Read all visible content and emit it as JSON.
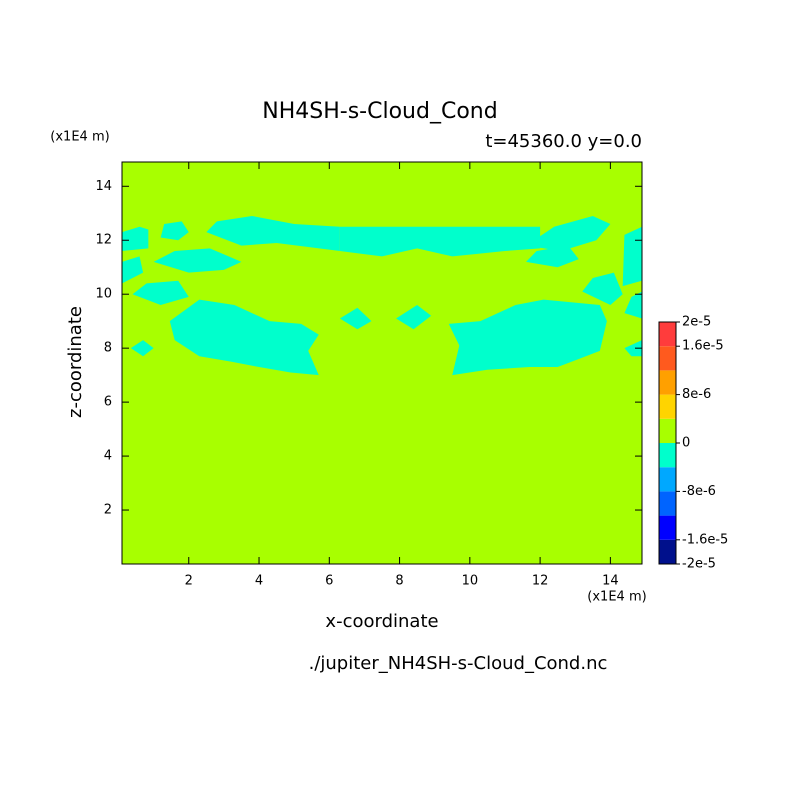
{
  "chart_data": {
    "type": "contour",
    "title": "NH4SH-s-Cloud_Cond",
    "subtitle": "t=45360.0 y=0.0",
    "x_label": "x-coordinate",
    "y_label": "z-coordinate",
    "x_unit": "(x1E4 m)",
    "y_unit": "(x1E4 m)",
    "source": "./jupiter_NH4SH-s-Cloud_Cond.nc",
    "xlim": [
      0.1,
      14.9
    ],
    "ylim": [
      0,
      14.9
    ],
    "xticks": [
      2,
      4,
      6,
      8,
      10,
      12,
      14
    ],
    "yticks": [
      2,
      4,
      6,
      8,
      10,
      12,
      14
    ],
    "levels": [
      -2e-05,
      -1.6e-05,
      -1.2e-05,
      -8e-06,
      -4e-06,
      0,
      4e-06,
      8e-06,
      1.2e-05,
      1.6e-05,
      2e-05
    ],
    "colors": [
      "#00108c",
      "#0000ff",
      "#0064ff",
      "#00a8ff",
      "#00ffcc",
      "#a8ff00",
      "#ffd400",
      "#ffa000",
      "#ff5a1e",
      "#ff3c3c"
    ],
    "cbar_ticks": [
      {
        "value": 2e-05,
        "label": "2e-5"
      },
      {
        "value": 1.6e-05,
        "label": "1.6e-5"
      },
      {
        "value": 8e-06,
        "label": "8e-6"
      },
      0,
      {
        "value": -8e-06,
        "label": "-8e-6"
      },
      {
        "value": -1.6e-05,
        "label": "-1.6e-5"
      },
      {
        "value": -2e-05,
        "label": "-2e-5"
      }
    ],
    "fill_value": 0,
    "regions": [
      {
        "value": -2e-06,
        "x": [
          0.1,
          0.85,
          0.85,
          0.6,
          0.1
        ],
        "y": [
          11.6,
          11.7,
          12.4,
          12.5,
          12.3
        ]
      },
      {
        "value": -2e-06,
        "x": [
          1.2,
          1.7,
          2.0,
          1.8,
          1.3
        ],
        "y": [
          12.1,
          12.0,
          12.3,
          12.7,
          12.6
        ]
      },
      {
        "value": -2e-06,
        "x": [
          1.0,
          2.0,
          3.0,
          3.5,
          2.6,
          1.6
        ],
        "y": [
          11.2,
          10.8,
          10.9,
          11.2,
          11.7,
          11.6
        ]
      },
      {
        "value": -2e-06,
        "x": [
          0.1,
          0.7,
          0.6,
          0.1
        ],
        "y": [
          10.4,
          10.8,
          11.4,
          11.2
        ]
      },
      {
        "value": -2e-06,
        "x": [
          0.4,
          1.2,
          2.0,
          1.7,
          0.8
        ],
        "y": [
          10.0,
          9.6,
          9.9,
          10.5,
          10.4
        ]
      },
      {
        "value": -2e-06,
        "x": [
          2.5,
          3.5,
          4.5,
          6.3,
          6.3,
          5.0,
          3.8,
          2.8
        ],
        "y": [
          12.3,
          11.8,
          11.9,
          11.6,
          12.5,
          12.6,
          12.9,
          12.7
        ]
      },
      {
        "value": -2e-06,
        "x": [
          6.3,
          7.5,
          8.5,
          9.5,
          11.0,
          12.0,
          12.0,
          6.3
        ],
        "y": [
          11.6,
          11.4,
          11.7,
          11.4,
          11.6,
          11.7,
          12.5,
          12.5
        ]
      },
      {
        "value": -2e-06,
        "x": [
          11.6,
          12.6,
          13.6,
          14.0,
          13.5,
          12.4
        ],
        "y": [
          11.8,
          11.6,
          12.0,
          12.6,
          12.9,
          12.5
        ]
      },
      {
        "value": -2e-06,
        "x": [
          11.6,
          12.5,
          13.1,
          12.8,
          11.9
        ],
        "y": [
          11.2,
          11.0,
          11.3,
          11.8,
          11.6
        ]
      },
      {
        "value": -2e-06,
        "x": [
          13.2,
          14.0,
          14.35,
          14.1,
          13.5
        ],
        "y": [
          10.1,
          9.6,
          10.0,
          10.8,
          10.6
        ]
      },
      {
        "value": -2e-06,
        "x": [
          14.35,
          14.9,
          14.9,
          14.4
        ],
        "y": [
          10.3,
          10.5,
          12.5,
          12.2
        ]
      },
      {
        "value": -2e-06,
        "x": [
          14.4,
          14.9,
          14.9,
          14.6
        ],
        "y": [
          9.3,
          9.1,
          10.1,
          9.9
        ]
      },
      {
        "value": -2e-06,
        "x": [
          1.46,
          2.3,
          3.3,
          4.3,
          5.2,
          5.7,
          5.4,
          5.7,
          4.9,
          4.0,
          3.2,
          2.3,
          1.6
        ],
        "y": [
          9.0,
          9.8,
          9.6,
          9.0,
          8.9,
          8.5,
          7.9,
          7.0,
          7.1,
          7.3,
          7.5,
          7.7,
          8.3
        ]
      },
      {
        "value": -2e-06,
        "x": [
          0.35,
          0.7,
          1.0,
          0.7
        ],
        "y": [
          8.0,
          8.3,
          8.0,
          7.7
        ]
      },
      {
        "value": -2e-06,
        "x": [
          6.3,
          6.8,
          7.2,
          6.8
        ],
        "y": [
          9.1,
          9.5,
          9.0,
          8.7
        ]
      },
      {
        "value": -2e-06,
        "x": [
          7.9,
          8.5,
          8.9,
          8.4
        ],
        "y": [
          9.1,
          9.6,
          9.2,
          8.7
        ]
      },
      {
        "value": -2e-06,
        "x": [
          9.4,
          10.3,
          11.3,
          12.1,
          13.7,
          13.9,
          13.7,
          13.1,
          12.5,
          11.7,
          10.5,
          9.5,
          9.7
        ],
        "y": [
          8.9,
          9.0,
          9.6,
          9.8,
          9.6,
          9.0,
          7.9,
          7.6,
          7.3,
          7.3,
          7.2,
          7.0,
          8.1
        ]
      },
      {
        "value": -2e-06,
        "x": [
          14.4,
          14.9,
          14.9,
          14.6
        ],
        "y": [
          8.0,
          8.3,
          7.7,
          7.7
        ]
      }
    ]
  }
}
